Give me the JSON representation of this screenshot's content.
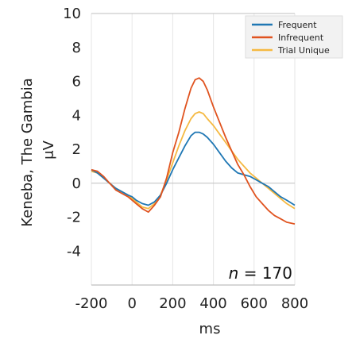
{
  "chart_data": {
    "type": "line",
    "row_label": "Keneba, The Gambia",
    "ylabel": "μV",
    "xlabel": "ms",
    "xlim": [
      -200,
      800
    ],
    "ylim": [
      -6,
      10
    ],
    "xticks": [
      -200,
      0,
      200,
      400,
      600,
      800
    ],
    "yticks": [
      -4,
      -2,
      0,
      2,
      4,
      6,
      8,
      10
    ],
    "grid": {
      "vertical": true,
      "horizontal": false
    },
    "legend_position": "top-right",
    "annotation": {
      "italic_part": "n",
      "rest": " = 170"
    },
    "series": [
      {
        "name": "Frequent",
        "color": "#1f77b4",
        "x": [
          -200,
          -170,
          -140,
          -110,
          -80,
          -50,
          -20,
          0,
          20,
          50,
          80,
          110,
          140,
          170,
          200,
          230,
          260,
          290,
          310,
          330,
          350,
          370,
          400,
          430,
          460,
          490,
          520,
          550,
          580,
          610,
          640,
          670,
          700,
          730,
          760,
          800
        ],
        "y": [
          0.8,
          0.6,
          0.3,
          0.0,
          -0.3,
          -0.5,
          -0.7,
          -0.8,
          -1.0,
          -1.2,
          -1.3,
          -1.1,
          -0.7,
          0.0,
          0.8,
          1.5,
          2.2,
          2.8,
          3.0,
          3.0,
          2.9,
          2.7,
          2.3,
          1.8,
          1.3,
          0.9,
          0.6,
          0.5,
          0.4,
          0.2,
          0.0,
          -0.2,
          -0.5,
          -0.8,
          -1.0,
          -1.3
        ]
      },
      {
        "name": "Infrequent",
        "color": "#e0531f",
        "x": [
          -200,
          -170,
          -140,
          -110,
          -80,
          -50,
          -20,
          0,
          20,
          50,
          80,
          110,
          140,
          170,
          200,
          230,
          260,
          290,
          310,
          330,
          350,
          370,
          400,
          430,
          460,
          490,
          520,
          550,
          580,
          610,
          640,
          670,
          700,
          730,
          760,
          800
        ],
        "y": [
          0.8,
          0.7,
          0.4,
          0.0,
          -0.4,
          -0.6,
          -0.8,
          -1.0,
          -1.2,
          -1.5,
          -1.7,
          -1.3,
          -0.8,
          0.3,
          1.8,
          3.0,
          4.4,
          5.6,
          6.1,
          6.2,
          6.0,
          5.5,
          4.5,
          3.6,
          2.7,
          1.9,
          1.1,
          0.5,
          -0.2,
          -0.8,
          -1.2,
          -1.6,
          -1.9,
          -2.1,
          -2.3,
          -2.4
        ]
      },
      {
        "name": "Trial Unique",
        "color": "#f5b942",
        "x": [
          -200,
          -170,
          -140,
          -110,
          -80,
          -50,
          -20,
          0,
          20,
          50,
          80,
          110,
          140,
          170,
          200,
          230,
          260,
          290,
          310,
          330,
          350,
          370,
          400,
          430,
          460,
          490,
          520,
          550,
          580,
          610,
          640,
          670,
          700,
          730,
          760,
          800
        ],
        "y": [
          0.7,
          0.6,
          0.3,
          0.0,
          -0.3,
          -0.5,
          -0.7,
          -0.9,
          -1.1,
          -1.4,
          -1.5,
          -1.2,
          -0.7,
          0.2,
          1.2,
          2.2,
          3.1,
          3.8,
          4.1,
          4.2,
          4.1,
          3.8,
          3.4,
          2.9,
          2.4,
          1.9,
          1.4,
          1.0,
          0.6,
          0.3,
          0.0,
          -0.3,
          -0.6,
          -0.9,
          -1.2,
          -1.5
        ]
      }
    ]
  }
}
